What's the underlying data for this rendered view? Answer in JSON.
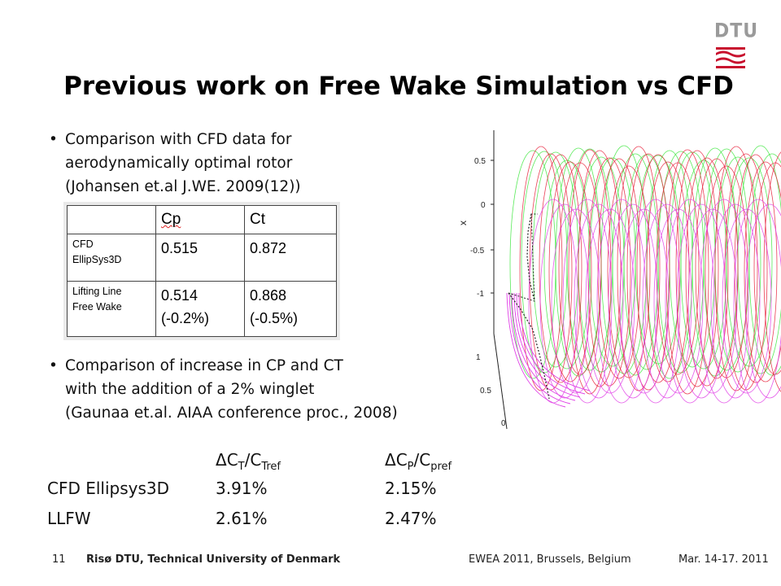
{
  "logo": {
    "text": "DTU"
  },
  "title": "Previous work on Free Wake Simulation vs CFD",
  "bullet1": {
    "lines": [
      "Comparison with CFD data for",
      "aerodynamically optimal rotor",
      "(Johansen et.al J.WE. 2009(12))"
    ]
  },
  "table": {
    "header": [
      "",
      "Cp",
      "Ct"
    ],
    "rows": [
      {
        "label": [
          "CFD",
          "EllipSys3D"
        ],
        "cp": [
          "0.515"
        ],
        "ct": [
          "0.872"
        ]
      },
      {
        "label": [
          "Lifting Line",
          "Free Wake"
        ],
        "cp": [
          "0.514",
          "(-0.2%)"
        ],
        "ct": [
          "0.868",
          "(-0.5%)"
        ]
      }
    ]
  },
  "bullet2": {
    "lines": [
      "Comparison of increase in CP and CT",
      "with the addition of a 2% winglet",
      "(Gaunaa et.al. AIAA conference proc., 2008)"
    ]
  },
  "results": {
    "col1_header": {
      "delta": "Δ",
      "a": "C",
      "a_sub": "T",
      "b": "/C",
      "b_sub": "Tref"
    },
    "col2_header": {
      "delta": "Δ",
      "a": "C",
      "a_sub": "P",
      "b": "/C",
      "b_sub": "pref"
    },
    "rows": [
      {
        "name": "CFD Ellipsys3D",
        "ct": "3.91%",
        "cp": "2.15%"
      },
      {
        "name": "LLFW",
        "ct": "2.61%",
        "cp": "2.47%"
      }
    ]
  },
  "plot": {
    "x_axis_label": "x",
    "x_ticks": [
      "0.5",
      "0",
      "-0.5",
      "-1"
    ],
    "depth_ticks": [
      "1",
      "0.5",
      "0"
    ],
    "colors": {
      "green": "#3de63d",
      "red": "#e8203a",
      "magenta": "#e040e6"
    }
  },
  "footer": {
    "page": "11",
    "org": "Risø DTU, Technical University of Denmark",
    "event": "EWEA 2011, Brussels, Belgium",
    "date": "Mar. 14-17. 2011"
  }
}
